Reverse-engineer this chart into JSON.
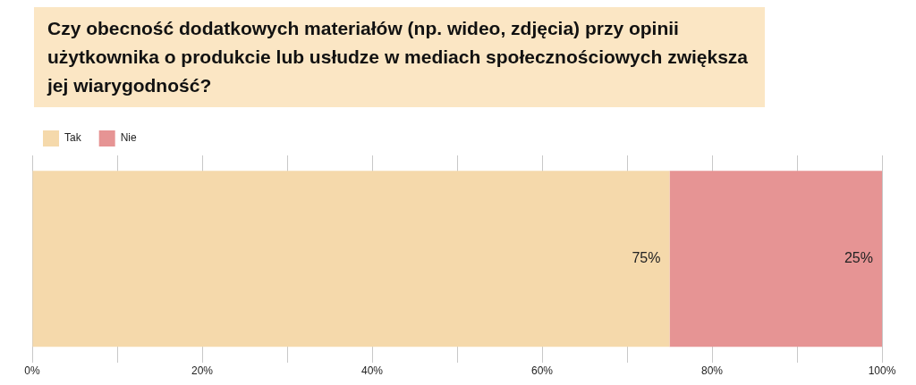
{
  "chart_data": {
    "type": "bar",
    "orientation": "horizontal",
    "stacked": true,
    "title": "Czy obecność dodatkowych materiałów (np. wideo, zdjęcia) przy opinii użytkownika o produkcie lub usłudze w mediach społecznościowych zwiększa jej wiarygodność?",
    "categories": [
      null
    ],
    "series": [
      {
        "name": "Tak",
        "color": "#f5d9ab",
        "values": [
          75
        ],
        "value_labels": [
          "75%"
        ]
      },
      {
        "name": "Nie",
        "color": "#e69494",
        "values": [
          25
        ],
        "value_labels": [
          "25%"
        ]
      }
    ],
    "xlim": [
      0,
      100
    ],
    "xticks": [
      {
        "value": 0,
        "label": "0%"
      },
      {
        "value": 10,
        "label": null
      },
      {
        "value": 20,
        "label": "20%"
      },
      {
        "value": 30,
        "label": null
      },
      {
        "value": 40,
        "label": "40%"
      },
      {
        "value": 50,
        "label": null
      },
      {
        "value": 60,
        "label": "60%"
      },
      {
        "value": 70,
        "label": null
      },
      {
        "value": 80,
        "label": "80%"
      },
      {
        "value": 90,
        "label": null
      },
      {
        "value": 100,
        "label": "100%"
      }
    ],
    "grid": "x",
    "legend": "top left",
    "tick_labels": "x"
  }
}
